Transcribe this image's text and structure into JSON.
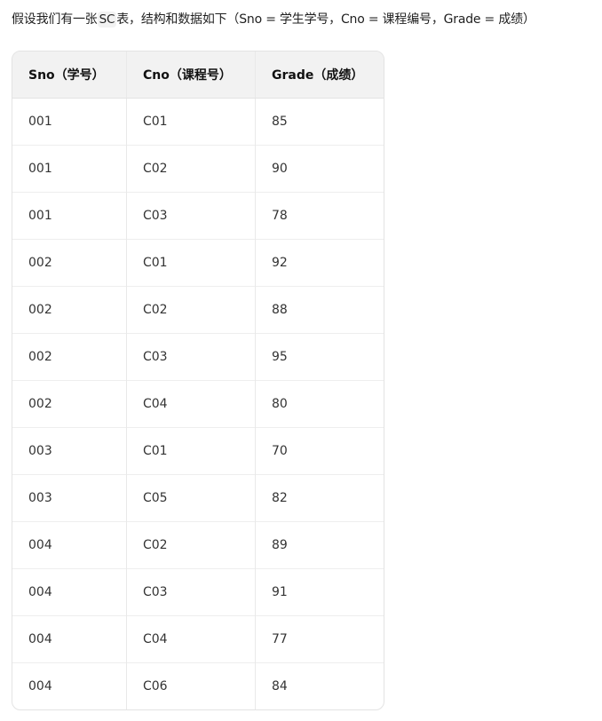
{
  "intro": {
    "before": "假设我们有一张",
    "code": "SC",
    "after": "表，结构和数据如下（Sno = 学生学号，Cno = 课程编号，Grade = 成绩）"
  },
  "table": {
    "headers": [
      "Sno（学号）",
      "Cno（课程号）",
      "Grade（成绩）"
    ],
    "rows": [
      [
        "001",
        "C01",
        "85"
      ],
      [
        "001",
        "C02",
        "90"
      ],
      [
        "001",
        "C03",
        "78"
      ],
      [
        "002",
        "C01",
        "92"
      ],
      [
        "002",
        "C02",
        "88"
      ],
      [
        "002",
        "C03",
        "95"
      ],
      [
        "002",
        "C04",
        "80"
      ],
      [
        "003",
        "C01",
        "70"
      ],
      [
        "003",
        "C05",
        "82"
      ],
      [
        "004",
        "C02",
        "89"
      ],
      [
        "004",
        "C03",
        "91"
      ],
      [
        "004",
        "C04",
        "77"
      ],
      [
        "004",
        "C06",
        "84"
      ]
    ]
  }
}
